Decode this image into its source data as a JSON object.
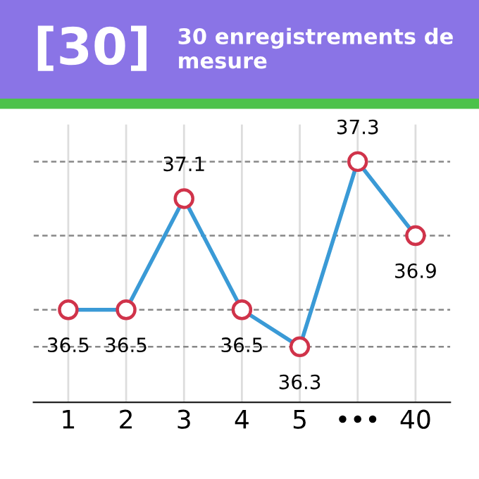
{
  "chart_data": {
    "type": "line",
    "title": "30 enregistrements de mesure",
    "annotations": [
      "[30]"
    ],
    "categories": [
      "1",
      "2",
      "3",
      "4",
      "5",
      "•••",
      "40"
    ],
    "series": [
      {
        "color": "#3a9ad6",
        "values": [
          36.5,
          36.5,
          37.1,
          36.5,
          36.3,
          37.3,
          36.9
        ]
      }
    ],
    "ylim": [
      36.0,
      37.5
    ],
    "yticks": [
      {
        "value": 36.3,
        "label": null
      },
      {
        "value": 36.5,
        "label": null
      },
      {
        "value": 36.9,
        "label": null
      },
      {
        "value": 37.3,
        "label": null
      }
    ],
    "tick_labels": "x",
    "grid": true,
    "marker": "circle",
    "line_style": "solid",
    "data_labels": true
  }
}
